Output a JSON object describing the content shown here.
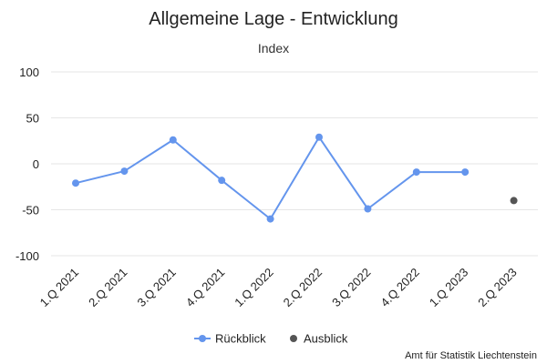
{
  "title": "Allgemeine Lage - Entwicklung",
  "subtitle": "Index",
  "credit": "Amt für Statistik Liechtenstein",
  "chart_data": {
    "type": "line",
    "title": "Allgemeine Lage - Entwicklung",
    "subtitle": "Index",
    "categories": [
      "1.Q 2021",
      "2.Q 2021",
      "3.Q 2021",
      "4.Q 2021",
      "1.Q 2022",
      "2.Q 2022",
      "3.Q 2022",
      "4.Q 2022",
      "1.Q 2023",
      "2.Q 2023"
    ],
    "ylim": [
      -100,
      100
    ],
    "yticks": [
      "100",
      "50",
      "0",
      "-50",
      "-100"
    ],
    "grid": true,
    "legend_position": "bottom",
    "series": [
      {
        "name": "Rückblick",
        "color": "#6495ED",
        "line": true,
        "values": [
          -21,
          -8,
          26,
          -18,
          -60,
          29,
          -49,
          -9,
          -9,
          null
        ]
      },
      {
        "name": "Ausblick",
        "color": "#555555",
        "line": false,
        "values": [
          null,
          null,
          null,
          null,
          null,
          null,
          null,
          null,
          null,
          -40
        ]
      }
    ]
  }
}
